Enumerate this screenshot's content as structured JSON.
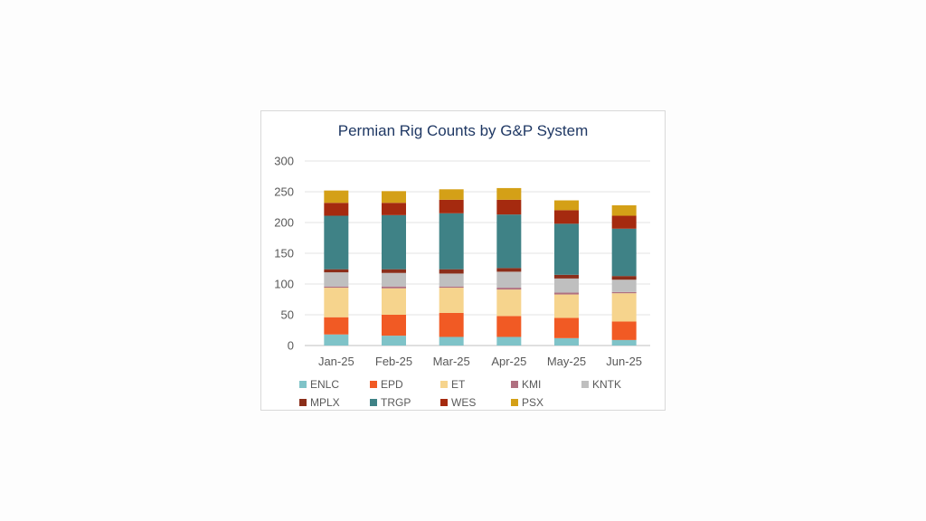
{
  "chart_data": {
    "type": "bar",
    "stacked": true,
    "title": "Permian Rig Counts by G&P System",
    "xlabel": "",
    "ylabel": "",
    "ylim": [
      0,
      300
    ],
    "yticks": [
      0,
      50,
      100,
      150,
      200,
      250,
      300
    ],
    "grid": true,
    "legend_position": "bottom",
    "categories": [
      "Jan-25",
      "Feb-25",
      "Mar-25",
      "Apr-25",
      "May-25",
      "Jun-25"
    ],
    "series": [
      {
        "name": "ENLC",
        "color": "#7fc3c8",
        "values": [
          18,
          16,
          14,
          14,
          12,
          9
        ]
      },
      {
        "name": "EPD",
        "color": "#f15a24",
        "values": [
          28,
          34,
          39,
          34,
          33,
          30
        ]
      },
      {
        "name": "ET",
        "color": "#f6d48d",
        "values": [
          48,
          43,
          41,
          43,
          38,
          46
        ]
      },
      {
        "name": "KMI",
        "color": "#b07080",
        "values": [
          2,
          3,
          2,
          3,
          3,
          2
        ]
      },
      {
        "name": "KNTK",
        "color": "#bfbfbf",
        "values": [
          23,
          22,
          21,
          26,
          23,
          20
        ]
      },
      {
        "name": "MPLX",
        "color": "#8b2e1a",
        "values": [
          5,
          6,
          7,
          6,
          6,
          6
        ]
      },
      {
        "name": "TRGP",
        "color": "#3f8286",
        "values": [
          87,
          88,
          91,
          87,
          83,
          77
        ]
      },
      {
        "name": "WES",
        "color": "#a52a0f",
        "values": [
          21,
          20,
          22,
          24,
          22,
          21
        ]
      },
      {
        "name": "PSX",
        "color": "#d4a017",
        "values": [
          20,
          19,
          17,
          19,
          16,
          17
        ]
      }
    ]
  }
}
